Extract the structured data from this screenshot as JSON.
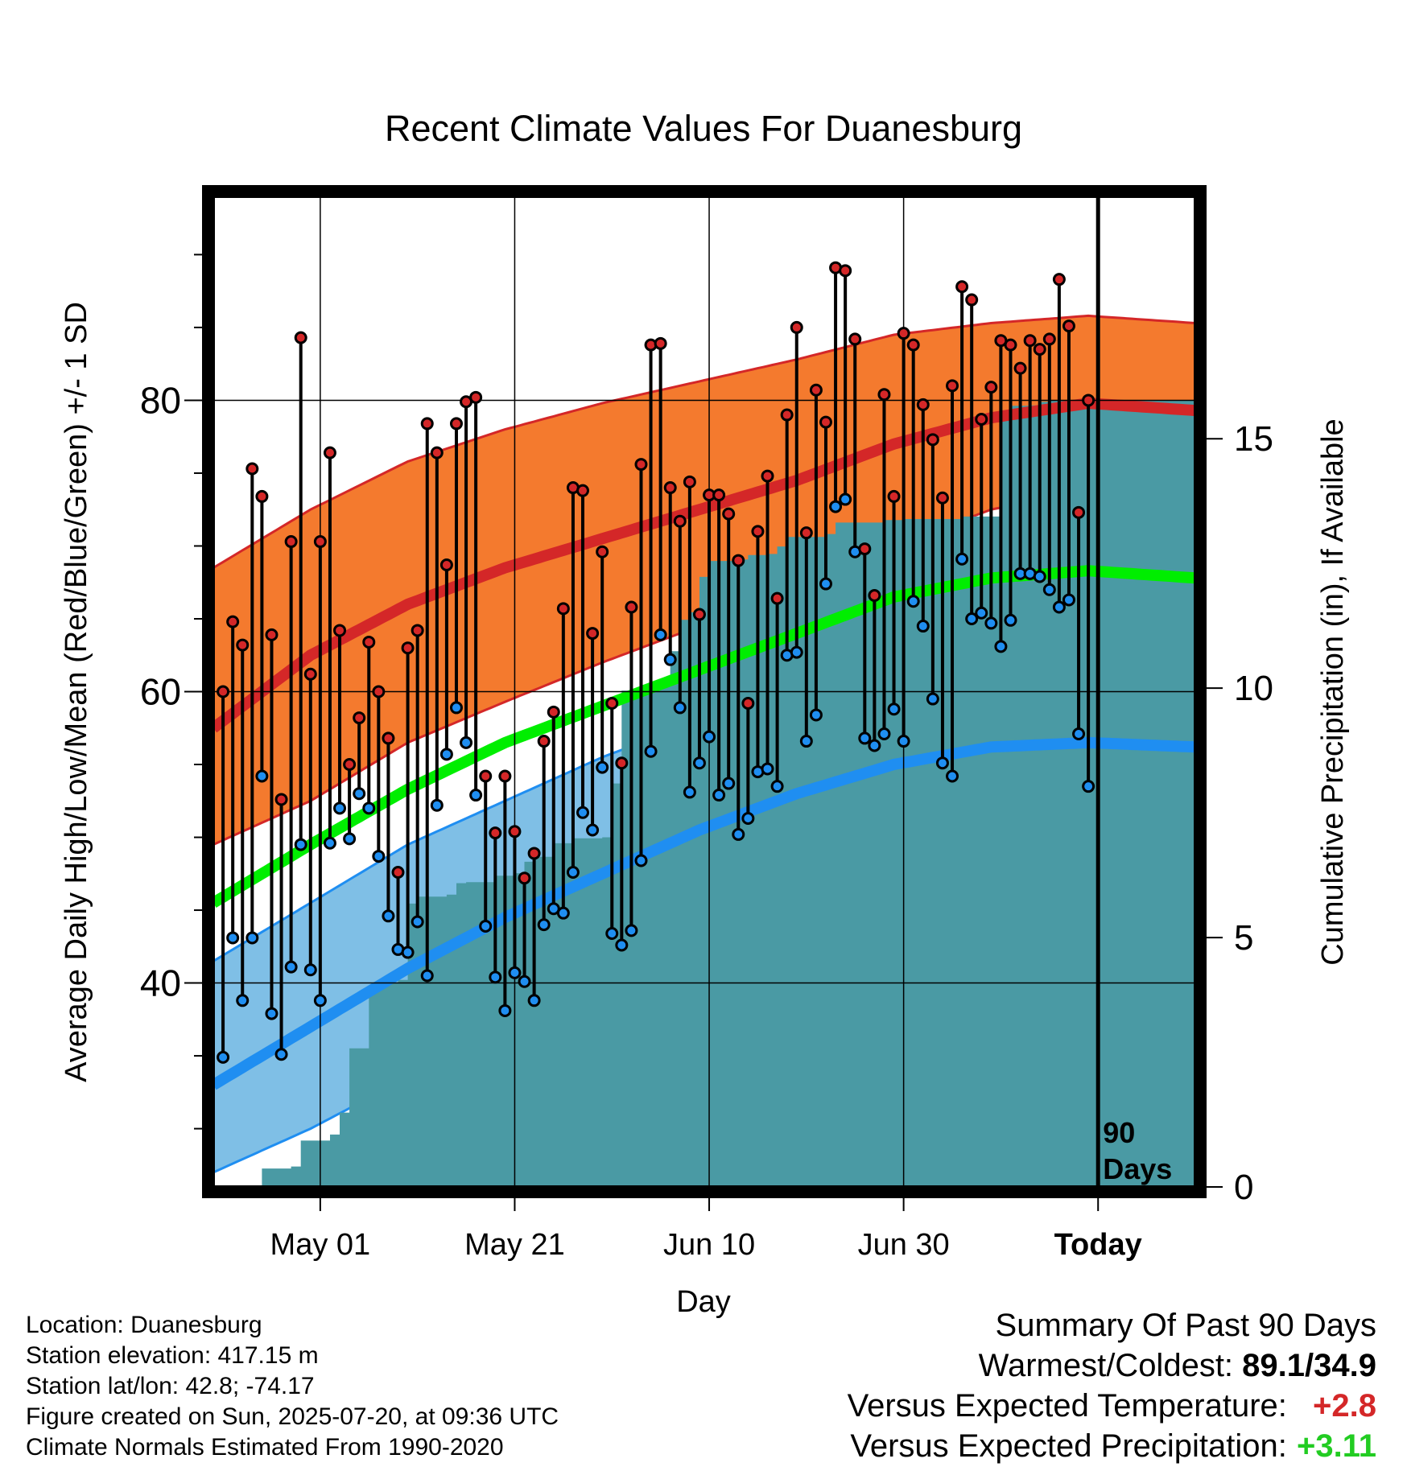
{
  "chart_data": {
    "type": "line",
    "title": "Recent Climate Values For Duanesburg",
    "xlabel": "Day",
    "ylabel": "Average Daily High/Low/Mean (Red/Blue/Green) +/- 1 SD",
    "y2label": "Cumulative Precipitation (in), If Available",
    "x_tick_labels": [
      "May 01",
      "May 21",
      "Jun 10",
      "Jun 30",
      "Today"
    ],
    "x_tick_days": [
      11,
      31,
      51,
      71,
      91
    ],
    "today_day": 91,
    "xlim": [
      0,
      101
    ],
    "ylim": [
      26,
      94
    ],
    "y_ticks": [
      40,
      60,
      80
    ],
    "y2lim": [
      0,
      19.86
    ],
    "y2_ticks": [
      0,
      5,
      10,
      15
    ],
    "period_label": "90 Days",
    "grid": true,
    "colors": {
      "high_mean": "#d42728",
      "high_band": "#f47a2e",
      "low_mean": "#1f8ef1",
      "low_band": "#7fbfe6",
      "mean": "#00ee00",
      "precip": "#4a9aa4",
      "high_point": "#d42728",
      "low_point": "#1f8ef1"
    },
    "normal_high": [
      [
        0,
        57.5
      ],
      [
        10,
        62.5
      ],
      [
        20,
        66.0
      ],
      [
        30,
        68.5
      ],
      [
        40,
        70.5
      ],
      [
        50,
        72.5
      ],
      [
        60,
        74.5
      ],
      [
        70,
        77.0
      ],
      [
        80,
        78.8
      ],
      [
        90,
        79.8
      ],
      [
        101,
        79.3
      ]
    ],
    "normal_high_upper": [
      [
        0,
        68.5
      ],
      [
        10,
        72.5
      ],
      [
        20,
        75.8
      ],
      [
        30,
        78.0
      ],
      [
        40,
        79.8
      ],
      [
        50,
        81.3
      ],
      [
        60,
        82.8
      ],
      [
        70,
        84.5
      ],
      [
        80,
        85.3
      ],
      [
        90,
        85.8
      ],
      [
        101,
        85.3
      ]
    ],
    "normal_high_lower": [
      [
        0,
        49.5
      ],
      [
        10,
        52.5
      ],
      [
        20,
        56.5
      ],
      [
        30,
        59.3
      ],
      [
        40,
        62.0
      ],
      [
        50,
        64.5
      ],
      [
        60,
        67.0
      ],
      [
        70,
        70.0
      ],
      [
        80,
        72.5
      ],
      [
        90,
        73.8
      ],
      [
        101,
        73.8
      ]
    ],
    "normal_mean": [
      [
        0,
        45.5
      ],
      [
        10,
        49.5
      ],
      [
        20,
        53.3
      ],
      [
        30,
        56.5
      ],
      [
        40,
        59.0
      ],
      [
        50,
        61.5
      ],
      [
        60,
        64.0
      ],
      [
        70,
        66.5
      ],
      [
        80,
        67.8
      ],
      [
        90,
        68.3
      ],
      [
        101,
        67.8
      ]
    ],
    "normal_low": [
      [
        0,
        33.0
      ],
      [
        10,
        37.0
      ],
      [
        20,
        41.0
      ],
      [
        30,
        44.5
      ],
      [
        40,
        47.5
      ],
      [
        50,
        50.5
      ],
      [
        60,
        53.0
      ],
      [
        70,
        55.0
      ],
      [
        80,
        56.2
      ],
      [
        90,
        56.5
      ],
      [
        101,
        56.2
      ]
    ],
    "normal_low_upper": [
      [
        0,
        41.5
      ],
      [
        10,
        45.5
      ],
      [
        20,
        49.5
      ],
      [
        30,
        52.5
      ],
      [
        40,
        55.5
      ],
      [
        50,
        58.0
      ],
      [
        60,
        60.0
      ],
      [
        70,
        61.5
      ],
      [
        80,
        62.3
      ],
      [
        90,
        62.5
      ],
      [
        101,
        62.2
      ]
    ],
    "normal_low_lower": [
      [
        0,
        27.0
      ],
      [
        10,
        30.0
      ],
      [
        20,
        33.5
      ],
      [
        30,
        36.5
      ],
      [
        40,
        39.5
      ],
      [
        50,
        42.5
      ],
      [
        60,
        45.5
      ],
      [
        70,
        48.5
      ],
      [
        80,
        50.5
      ],
      [
        90,
        51.0
      ],
      [
        101,
        50.8
      ]
    ],
    "daily_high": [
      60.0,
      64.8,
      63.2,
      75.3,
      73.4,
      63.9,
      52.6,
      70.3,
      84.3,
      61.2,
      70.3,
      76.4,
      64.2,
      55.0,
      58.2,
      63.4,
      60.0,
      56.8,
      47.6,
      63.0,
      64.2,
      78.4,
      76.4,
      68.7,
      78.4,
      79.9,
      80.2,
      54.2,
      50.3,
      54.2,
      50.4,
      47.2,
      48.9,
      56.6,
      58.6,
      65.7,
      74.0,
      73.8,
      64.0,
      69.6,
      59.2,
      55.1,
      65.8,
      75.6,
      83.8,
      83.9,
      74.0,
      71.7,
      74.4,
      65.3,
      73.5,
      73.5,
      72.2,
      69.0,
      59.2,
      71.0,
      74.8,
      66.4,
      79.0,
      85.0,
      70.9,
      80.7,
      78.5,
      89.1,
      88.9,
      84.2,
      69.8,
      66.6,
      80.4,
      73.4,
      84.6,
      83.8,
      79.7,
      77.3,
      73.3,
      81.0,
      87.8,
      86.9,
      78.7,
      80.9,
      84.1,
      83.8,
      82.2,
      84.1,
      83.5,
      84.2,
      88.3,
      85.1,
      72.3,
      80.0
    ],
    "daily_low": [
      34.9,
      43.1,
      38.8,
      43.1,
      54.2,
      37.9,
      35.1,
      41.1,
      49.5,
      40.9,
      38.8,
      49.6,
      52.0,
      49.9,
      53.0,
      52.0,
      48.7,
      44.6,
      42.3,
      42.1,
      44.2,
      40.5,
      52.2,
      55.7,
      58.9,
      56.5,
      52.9,
      43.9,
      40.4,
      38.1,
      40.7,
      40.1,
      38.8,
      44.0,
      45.1,
      44.8,
      47.6,
      51.7,
      50.5,
      54.8,
      43.4,
      42.6,
      43.6,
      48.4,
      55.9,
      63.9,
      62.2,
      58.9,
      53.1,
      55.1,
      56.9,
      52.9,
      53.7,
      50.2,
      51.3,
      54.5,
      54.7,
      53.5,
      62.5,
      62.7,
      56.6,
      58.4,
      67.4,
      72.7,
      73.2,
      69.6,
      56.8,
      56.3,
      57.1,
      58.8,
      56.6,
      66.2,
      64.5,
      59.5,
      55.1,
      54.2,
      69.1,
      65.0,
      65.4,
      64.7,
      63.1,
      64.9,
      68.1,
      68.1,
      67.9,
      67.0,
      65.8,
      66.3,
      57.1,
      53.5
    ],
    "cumulative_precip": [
      [
        4,
        0
      ],
      [
        5,
        0.37
      ],
      [
        7,
        0.37
      ],
      [
        8,
        0.41
      ],
      [
        9,
        0.93
      ],
      [
        11,
        0.93
      ],
      [
        12,
        1.05
      ],
      [
        13,
        1.49
      ],
      [
        14,
        2.78
      ],
      [
        16,
        3.97
      ],
      [
        17,
        4.09
      ],
      [
        18,
        4.09
      ],
      [
        19,
        4.15
      ],
      [
        20,
        5.68
      ],
      [
        21,
        5.82
      ],
      [
        24,
        5.86
      ],
      [
        25,
        6.09
      ],
      [
        26,
        6.11
      ],
      [
        28,
        6.11
      ],
      [
        29,
        6.24
      ],
      [
        31,
        6.29
      ],
      [
        32,
        6.52
      ],
      [
        33,
        6.62
      ],
      [
        35,
        6.89
      ],
      [
        37,
        6.99
      ],
      [
        40,
        7.01
      ],
      [
        41,
        8.09
      ],
      [
        42,
        9.95
      ],
      [
        45,
        9.96
      ],
      [
        46,
        10.18
      ],
      [
        47,
        10.74
      ],
      [
        48,
        11.37
      ],
      [
        49,
        11.52
      ],
      [
        50,
        12.23
      ],
      [
        51,
        12.55
      ],
      [
        54,
        12.58
      ],
      [
        55,
        12.67
      ],
      [
        57,
        12.69
      ],
      [
        58,
        12.84
      ],
      [
        59,
        13.03
      ],
      [
        63,
        13.09
      ],
      [
        64,
        13.32
      ],
      [
        69,
        13.37
      ],
      [
        71,
        13.39
      ],
      [
        77,
        13.44
      ],
      [
        80,
        13.44
      ],
      [
        81,
        15.57
      ],
      [
        82,
        15.66
      ],
      [
        84,
        15.67
      ],
      [
        85,
        15.74
      ],
      [
        86,
        15.77
      ],
      [
        101,
        15.79
      ]
    ]
  },
  "info": {
    "location": "Location: Duanesburg",
    "elevation": "Station elevation: 417.15 m",
    "latlon": "Station lat/lon: 42.8; -74.17",
    "created": "Figure created on Sun, 2025-07-20, at 09:36 UTC",
    "normals": "Climate Normals Estimated From 1990-2020"
  },
  "summary": {
    "title": "Summary Of Past 90 Days",
    "warm_cold_label": "Warmest/Coldest:",
    "warm_cold_value": "89.1/34.9",
    "temp_label": "Versus Expected Temperature:",
    "temp_value": "+2.8",
    "temp_color": "#d42728",
    "precip_label": "Versus Expected Precipitation:",
    "precip_value": "+3.11",
    "precip_color": "#22cc22"
  }
}
